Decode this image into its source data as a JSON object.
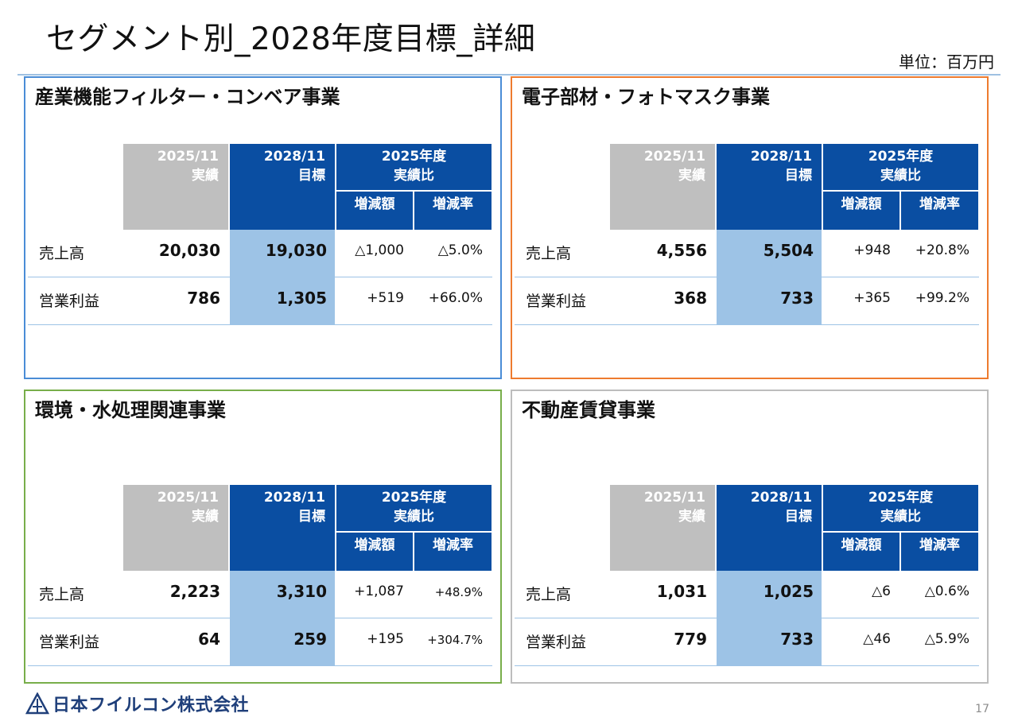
{
  "title": "セグメント別_2028年度目標_詳細",
  "unit": "単位：百万円",
  "header": {
    "actual_line1": "2025/11",
    "actual_line2": "実績",
    "target_line1": "2028/11",
    "target_line2": "目標",
    "compare_line1": "2025年度",
    "compare_line2": "実績比",
    "diff": "増減額",
    "rate": "増減率"
  },
  "row_labels": {
    "sales": "売上高",
    "op_profit": "営業利益"
  },
  "segments": [
    {
      "name": "産業機能フィルター・コンベア事業",
      "border_color": "#4a8cd6",
      "sales": {
        "actual": "20,030",
        "target": "19,030",
        "diff": "△1,000",
        "rate": "△5.0%"
      },
      "op_profit": {
        "actual": "786",
        "target": "1,305",
        "diff": "+519",
        "rate": "+66.0%"
      }
    },
    {
      "name": "電子部材・フォトマスク事業",
      "border_color": "#ee7b2f",
      "sales": {
        "actual": "4,556",
        "target": "5,504",
        "diff": "+948",
        "rate": "+20.8%"
      },
      "op_profit": {
        "actual": "368",
        "target": "733",
        "diff": "+365",
        "rate": "+99.2%"
      }
    },
    {
      "name": "環境・水処理関連事業",
      "border_color": "#78ae4a",
      "sales": {
        "actual": "2,223",
        "target": "3,310",
        "diff": "+1,087",
        "rate": "+48.9%"
      },
      "op_profit": {
        "actual": "64",
        "target": "259",
        "diff": "+195",
        "rate": "+304.7%"
      }
    },
    {
      "name": "不動産賃貸事業",
      "border_color": "#bdbdbd",
      "sales": {
        "actual": "1,031",
        "target": "1,025",
        "diff": "△6",
        "rate": "△0.6%"
      },
      "op_profit": {
        "actual": "779",
        "target": "733",
        "diff": "△46",
        "rate": "△5.9%"
      }
    }
  ],
  "company_name": "日本フイルコン株式会社",
  "page_number": "17",
  "colors": {
    "header_blue": "#0a4ea2",
    "actual_gray": "#bfbfbf",
    "target_band": "#9dc3e6",
    "logo_navy": "#1f3f7a"
  }
}
